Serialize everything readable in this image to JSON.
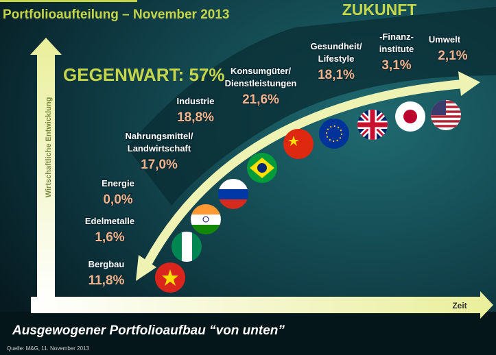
{
  "header": {
    "title": "Portfolioaufteilung – November 2013"
  },
  "future_label": "ZUKUNFT",
  "present_label": "GEGENWART: 57%",
  "y_axis_label": "Wirtschaftliche Entwicklung",
  "x_axis_label": "Zeit",
  "sectors": [
    {
      "label_lines": [
        "Bergbau"
      ],
      "share": "11,8%"
    },
    {
      "label_lines": [
        "Edelmetalle"
      ],
      "share": "1,6%"
    },
    {
      "label_lines": [
        "Energie"
      ],
      "share": "0,0%"
    },
    {
      "label_lines": [
        "Nahrungsmittel/",
        "Landwirtschaft"
      ],
      "share": "17,0%"
    },
    {
      "label_lines": [
        "Industrie"
      ],
      "share": "18,8%"
    },
    {
      "label_lines": [
        "Konsumgüter/",
        "Dienstleistungen"
      ],
      "share": "21,6%"
    },
    {
      "label_lines": [
        "Gesundheit/",
        "Lifestyle"
      ],
      "share": "18,1%"
    },
    {
      "label_lines": [
        "-Finanz-",
        "institute"
      ],
      "share": "3,1%"
    },
    {
      "label_lines": [
        "Umwelt"
      ],
      "share": "2,1%"
    }
  ],
  "subtitle": "Ausgewogener Portfolioaufbau “von unten”",
  "source": "Quelle: M&G, 11. November 2013"
}
